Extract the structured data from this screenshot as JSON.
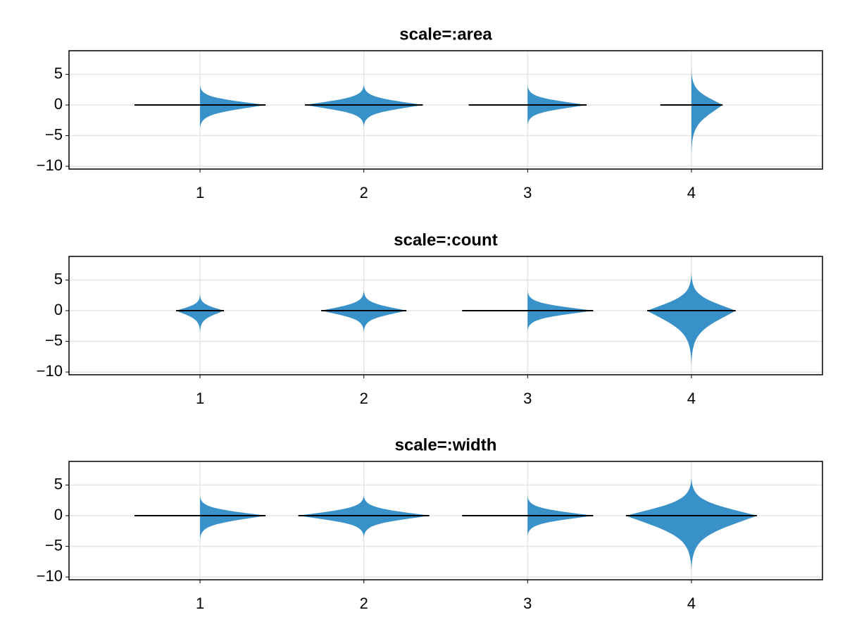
{
  "chart_data": [
    {
      "type": "violin",
      "title": "scale=:area",
      "color": "#2e8bc6",
      "grid": true,
      "xlim": [
        0.2,
        4.8
      ],
      "xticks": [
        1,
        2,
        3,
        4
      ],
      "ylim": [
        -10.45,
        8.85
      ],
      "yticks": [
        {
          "value": -10,
          "label": "−10"
        },
        {
          "value": -5,
          "label": "−5"
        },
        0,
        5
      ],
      "violins": [
        {
          "x": 1,
          "min": -4,
          "max": 3.4,
          "median": 0,
          "half_width": 0.4
        },
        {
          "x": 2,
          "min": -3.7,
          "max": 3.5,
          "median": 0,
          "half_width": 0.36
        },
        {
          "x": 3,
          "min": -3.5,
          "max": 3.4,
          "median": 0,
          "half_width": 0.36
        },
        {
          "x": 4,
          "min": -8.5,
          "max": 6.3,
          "median": 0,
          "half_width": 0.19
        }
      ]
    },
    {
      "type": "violin",
      "title": "scale=:count",
      "color": "#2e8bc6",
      "grid": true,
      "xlim": [
        0.2,
        4.8
      ],
      "xticks": [
        1,
        2,
        3,
        4
      ],
      "ylim": [
        -10.45,
        8.85
      ],
      "yticks": [
        {
          "value": -10,
          "label": "−10"
        },
        {
          "value": -5,
          "label": "−5"
        },
        0,
        5
      ],
      "violins": [
        {
          "x": 1,
          "min": -3.8,
          "max": 2.9,
          "median": 0,
          "half_width": 0.146
        },
        {
          "x": 2,
          "min": -3.7,
          "max": 3.5,
          "median": 0,
          "half_width": 0.26
        },
        {
          "x": 3,
          "min": -3.5,
          "max": 3.4,
          "median": 0,
          "half_width": 0.4
        },
        {
          "x": 4,
          "min": -9.3,
          "max": 6.5,
          "median": 0,
          "half_width": 0.27
        }
      ]
    },
    {
      "type": "violin",
      "title": "scale=:width",
      "color": "#2e8bc6",
      "grid": true,
      "xlim": [
        0.2,
        4.8
      ],
      "xticks": [
        1,
        2,
        3,
        4
      ],
      "ylim": [
        -10.45,
        8.85
      ],
      "yticks": [
        {
          "value": -10,
          "label": "−10"
        },
        {
          "value": -5,
          "label": "−5"
        },
        0,
        5
      ],
      "violins": [
        {
          "x": 1,
          "min": -4,
          "max": 3.4,
          "median": 0,
          "half_width": 0.4
        },
        {
          "x": 2,
          "min": -3.7,
          "max": 3.5,
          "median": 0,
          "half_width": 0.4
        },
        {
          "x": 3,
          "min": -3.5,
          "max": 3.4,
          "median": 0,
          "half_width": 0.4
        },
        {
          "x": 4,
          "min": -9.3,
          "max": 6.5,
          "median": 0,
          "half_width": 0.4
        }
      ]
    }
  ]
}
